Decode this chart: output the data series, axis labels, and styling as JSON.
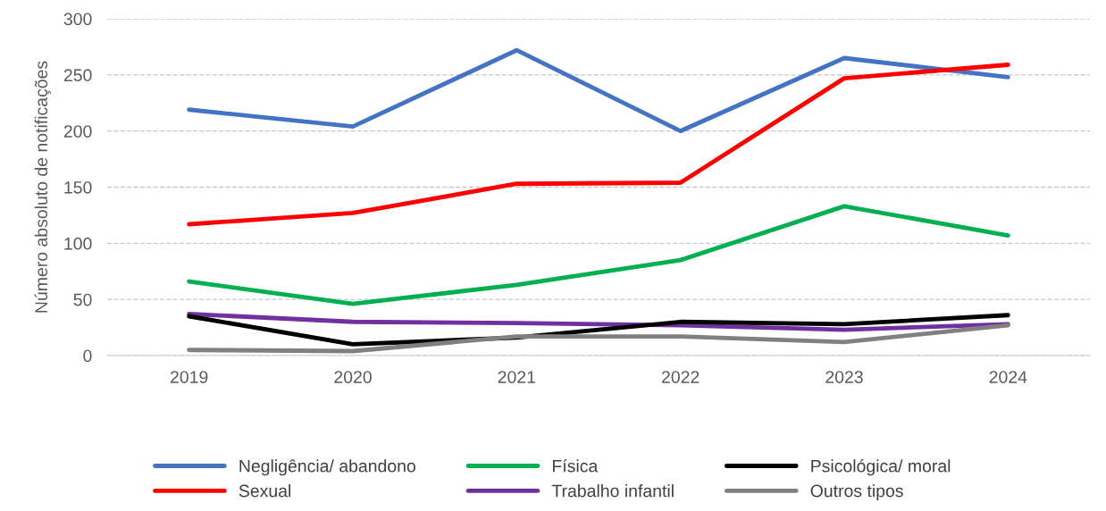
{
  "chart_data": {
    "type": "line",
    "ylabel": "Número absoluto de notificações",
    "categories": [
      "2019",
      "2020",
      "2021",
      "2022",
      "2023",
      "2024"
    ],
    "series": [
      {
        "name": "Negligência/ abandono",
        "color": "#4472c4",
        "values": [
          219,
          204,
          272,
          200,
          265,
          248
        ]
      },
      {
        "name": "Sexual",
        "color": "#ff0000",
        "values": [
          117,
          127,
          153,
          154,
          247,
          259
        ]
      },
      {
        "name": "Física",
        "color": "#00b050",
        "values": [
          66,
          46,
          63,
          85,
          133,
          107
        ]
      },
      {
        "name": "Trabalho infantil",
        "color": "#7030a0",
        "values": [
          37,
          30,
          29,
          27,
          23,
          28
        ]
      },
      {
        "name": "Psicológica/ moral",
        "color": "#000000",
        "values": [
          35,
          10,
          16,
          30,
          28,
          36
        ]
      },
      {
        "name": "Outros tipos",
        "color": "#808080",
        "values": [
          5,
          4,
          17,
          17,
          12,
          27
        ]
      }
    ],
    "ylim": [
      0,
      300
    ],
    "yticks": [
      0,
      50,
      100,
      150,
      200,
      250,
      300
    ],
    "grid": "y",
    "legend": "bottom",
    "marker": "none",
    "line_style": "solid"
  }
}
